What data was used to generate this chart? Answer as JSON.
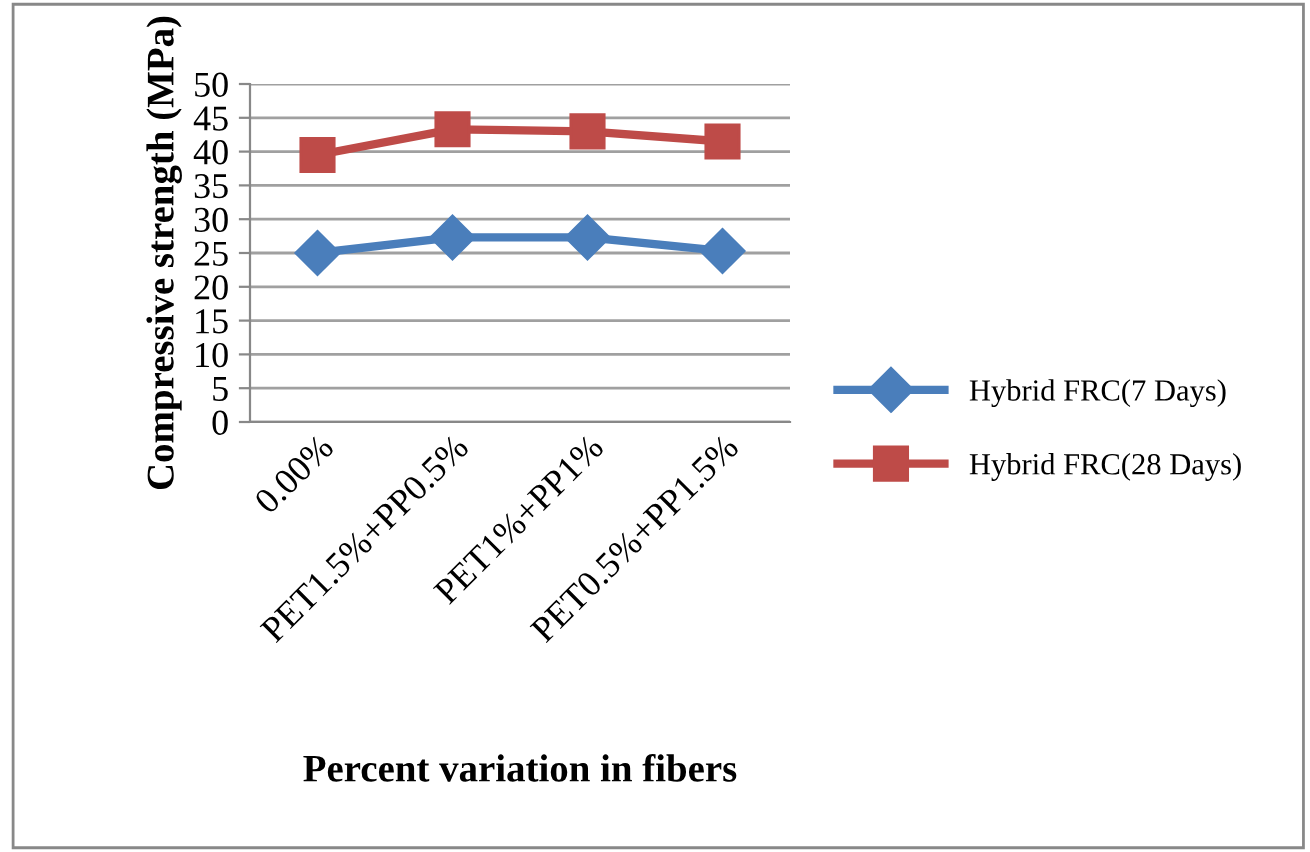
{
  "chart_data": {
    "type": "line",
    "xlabel": "Percent variation in fibers",
    "ylabel": "Compressive strength (MPa)",
    "categories": [
      "0.00%",
      "PET1.5%+PP0.5%",
      "PET1%+PP1%",
      "PET0.5%+PP1.5%"
    ],
    "series": [
      {
        "name": "Hybrid FRC(7 Days)",
        "color": "#4a7ebb",
        "values": [
          25,
          27.3,
          27.3,
          25.3
        ],
        "marker": "diamond"
      },
      {
        "name": "Hybrid FRC(28 Days)",
        "color": "#be4b48",
        "values": [
          39.5,
          43.3,
          43,
          41.5
        ],
        "marker": "square"
      }
    ],
    "ylim": [
      0,
      50
    ],
    "yticks": [
      0,
      5,
      10,
      15,
      20,
      25,
      30,
      35,
      40,
      45,
      50
    ],
    "grid": "y",
    "legend": "right"
  }
}
